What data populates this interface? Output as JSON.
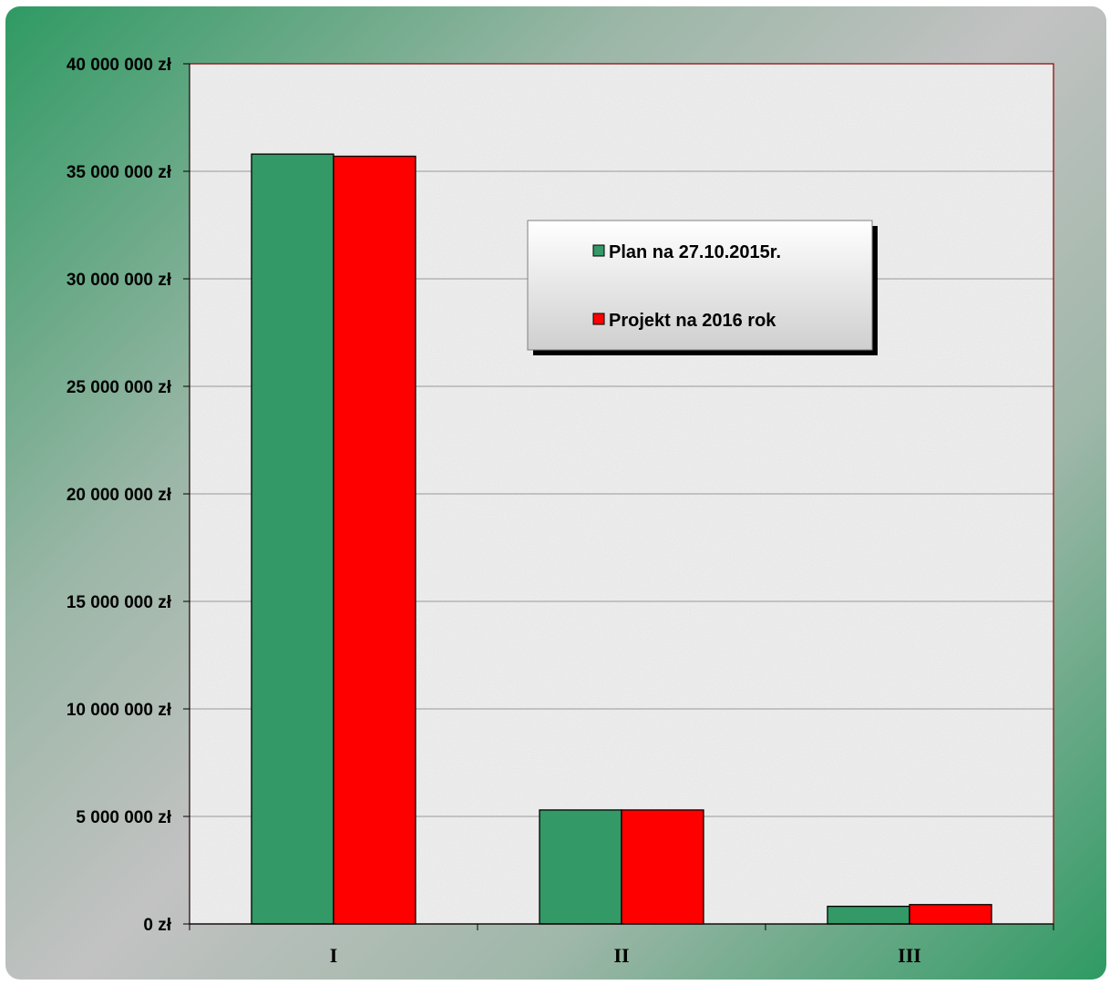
{
  "chart_data": {
    "type": "bar",
    "categories": [
      "I",
      "II",
      "III"
    ],
    "series": [
      {
        "name": "Plan na 27.10.2015r.",
        "color": "#339966",
        "values": [
          35800000,
          5300000,
          820000
        ]
      },
      {
        "name": "Projekt na 2016 rok",
        "color": "#ff0000",
        "values": [
          35700000,
          5300000,
          900000
        ]
      }
    ],
    "ylim": [
      0,
      40000000
    ],
    "yticks": [
      {
        "value": 0,
        "label": "0 zł"
      },
      {
        "value": 5000000,
        "label": "5 000 000 zł"
      },
      {
        "value": 10000000,
        "label": "10 000 000 zł"
      },
      {
        "value": 15000000,
        "label": "15 000 000 zł"
      },
      {
        "value": 20000000,
        "label": "20 000 000 zł"
      },
      {
        "value": 25000000,
        "label": "25 000 000 zł"
      },
      {
        "value": 30000000,
        "label": "30 000 000 zł"
      },
      {
        "value": 35000000,
        "label": "35 000 000 zł"
      },
      {
        "value": 40000000,
        "label": "40 000 000 zł"
      }
    ],
    "grid": true,
    "legend_position": "top-right",
    "title": "",
    "xlabel": "",
    "ylabel": ""
  }
}
